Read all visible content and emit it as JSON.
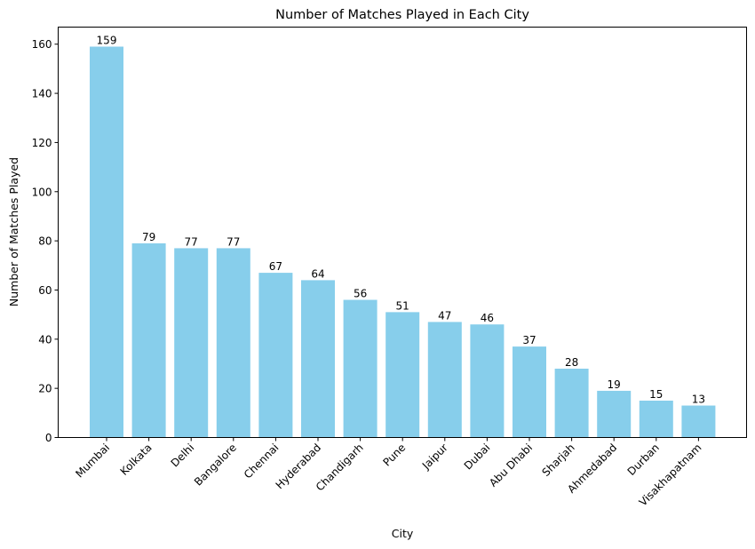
{
  "chart_data": {
    "type": "bar",
    "title": "Number of Matches Played in Each City",
    "xlabel": "City",
    "ylabel": "Number of Matches Played",
    "ylim": [
      0,
      166.95
    ],
    "yticks": [
      0,
      20,
      40,
      60,
      80,
      100,
      120,
      140,
      160
    ],
    "grid": false,
    "legend": null,
    "bar_color": "#87CEEB",
    "categories": [
      "Mumbai",
      "Kolkata",
      "Delhi",
      "Bangalore",
      "Chennai",
      "Hyderabad",
      "Chandigarh",
      "Pune",
      "Jaipur",
      "Dubai",
      "Abu Dhabi",
      "Sharjah",
      "Ahmedabad",
      "Durban",
      "Visakhapatnam"
    ],
    "values": [
      159,
      79,
      77,
      77,
      67,
      64,
      56,
      51,
      47,
      46,
      37,
      28,
      19,
      15,
      13
    ]
  }
}
